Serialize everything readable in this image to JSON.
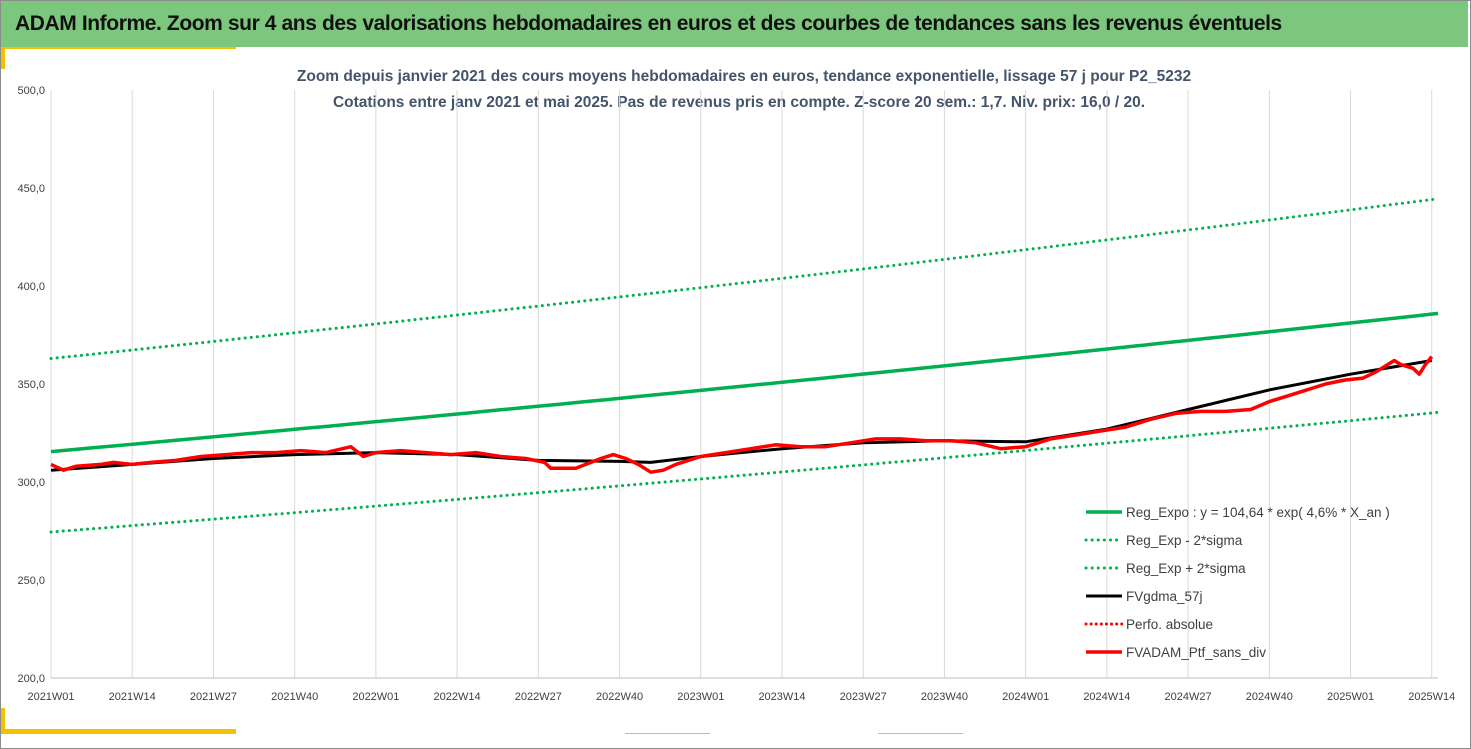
{
  "header": {
    "title": "ADAM Informe. Zoom sur 4 ans des valorisations hebdomadaires en euros et des courbes de tendances sans les revenus éventuels"
  },
  "colors": {
    "header_bg": "#7dc67d",
    "trend_green": "#00b050",
    "black": "#000000",
    "red": "#ff0000",
    "accent": "#f2c200"
  },
  "chart_data": {
    "type": "line",
    "title_lines": [
      "Zoom depuis janvier 2021 des cours moyens hebdomadaires  en euros, tendance exponentielle, lissage 57 j pour P2_5232",
      "Cotations entre janv 2021 et mai 2025. Pas de revenus pris en compte. Z-score 20 sem.: 1,7. Niv. prix: 16,0 / 20."
    ],
    "ylim": [
      200,
      500
    ],
    "y_ticks": [
      "200,0",
      "250,0",
      "300,0",
      "350,0",
      "400,0",
      "450,0",
      "500,0"
    ],
    "y_tick_values": [
      200,
      250,
      300,
      350,
      400,
      450,
      500
    ],
    "x_tick_labels": [
      "2021W01",
      "2021W14",
      "2021W27",
      "2021W40",
      "2022W01",
      "2022W14",
      "2022W27",
      "2022W40",
      "2023W01",
      "2023W14",
      "2023W27",
      "2023W40",
      "2024W01",
      "2024W14",
      "2024W27",
      "2024W40",
      "2025W01",
      "2025W14"
    ],
    "weeks_total": 222,
    "grid": "vertical",
    "legend_position": "bottom-right",
    "series": [
      {
        "name": "Reg_Expo : y = 104,64 * exp( 4,6% *  X_an )",
        "style": "solid-green",
        "start": 315.5,
        "end": 386
      },
      {
        "name": "Reg_Exp - 2*sigma",
        "style": "dotted-green",
        "start": 274.5,
        "end": 335.5
      },
      {
        "name": "Reg_Exp + 2*sigma",
        "style": "dotted-green",
        "start": 363,
        "end": 444.5
      },
      {
        "name": "FVgdma_57j",
        "style": "solid-black",
        "points": [
          [
            0,
            306
          ],
          [
            13,
            309
          ],
          [
            26,
            312
          ],
          [
            39,
            314
          ],
          [
            52,
            315
          ],
          [
            65,
            314
          ],
          [
            78,
            311
          ],
          [
            91,
            310.5
          ],
          [
            96,
            310
          ],
          [
            104,
            313
          ],
          [
            117,
            317
          ],
          [
            130,
            320
          ],
          [
            143,
            321
          ],
          [
            156,
            320.5
          ],
          [
            169,
            327
          ],
          [
            182,
            337
          ],
          [
            195,
            347
          ],
          [
            208,
            355
          ],
          [
            221,
            362
          ]
        ]
      },
      {
        "name": "Perfo. absolue",
        "style": "dotted-red",
        "points": []
      },
      {
        "name": "FVADAM_Ptf_sans_div",
        "style": "solid-red",
        "points": [
          [
            0,
            309
          ],
          [
            2,
            306
          ],
          [
            4,
            308
          ],
          [
            8,
            309
          ],
          [
            10,
            310
          ],
          [
            13,
            309
          ],
          [
            16,
            310
          ],
          [
            20,
            311
          ],
          [
            24,
            313
          ],
          [
            28,
            314
          ],
          [
            32,
            315
          ],
          [
            36,
            315
          ],
          [
            40,
            316
          ],
          [
            44,
            315
          ],
          [
            48,
            318
          ],
          [
            50,
            313
          ],
          [
            52,
            315
          ],
          [
            56,
            316
          ],
          [
            60,
            315
          ],
          [
            64,
            314
          ],
          [
            68,
            315
          ],
          [
            72,
            313
          ],
          [
            76,
            312
          ],
          [
            79,
            310
          ],
          [
            80,
            307
          ],
          [
            84,
            307
          ],
          [
            88,
            312
          ],
          [
            90,
            314
          ],
          [
            92,
            312
          ],
          [
            94,
            309
          ],
          [
            96,
            305
          ],
          [
            98,
            306
          ],
          [
            100,
            309
          ],
          [
            104,
            313
          ],
          [
            108,
            315
          ],
          [
            112,
            317
          ],
          [
            116,
            319
          ],
          [
            120,
            318
          ],
          [
            124,
            318
          ],
          [
            128,
            320
          ],
          [
            132,
            322
          ],
          [
            136,
            322
          ],
          [
            140,
            321
          ],
          [
            144,
            321
          ],
          [
            148,
            320
          ],
          [
            152,
            317
          ],
          [
            156,
            318
          ],
          [
            160,
            322
          ],
          [
            164,
            324
          ],
          [
            168,
            326
          ],
          [
            172,
            328
          ],
          [
            176,
            332
          ],
          [
            180,
            335
          ],
          [
            184,
            336
          ],
          [
            188,
            336
          ],
          [
            192,
            337
          ],
          [
            195,
            341
          ],
          [
            198,
            344
          ],
          [
            201,
            347
          ],
          [
            204,
            350
          ],
          [
            207,
            352
          ],
          [
            210,
            353
          ],
          [
            212,
            356
          ],
          [
            214,
            360
          ],
          [
            215,
            362
          ],
          [
            216,
            360
          ],
          [
            218,
            358
          ],
          [
            219,
            355
          ],
          [
            220,
            360
          ],
          [
            221,
            364
          ]
        ]
      }
    ]
  }
}
